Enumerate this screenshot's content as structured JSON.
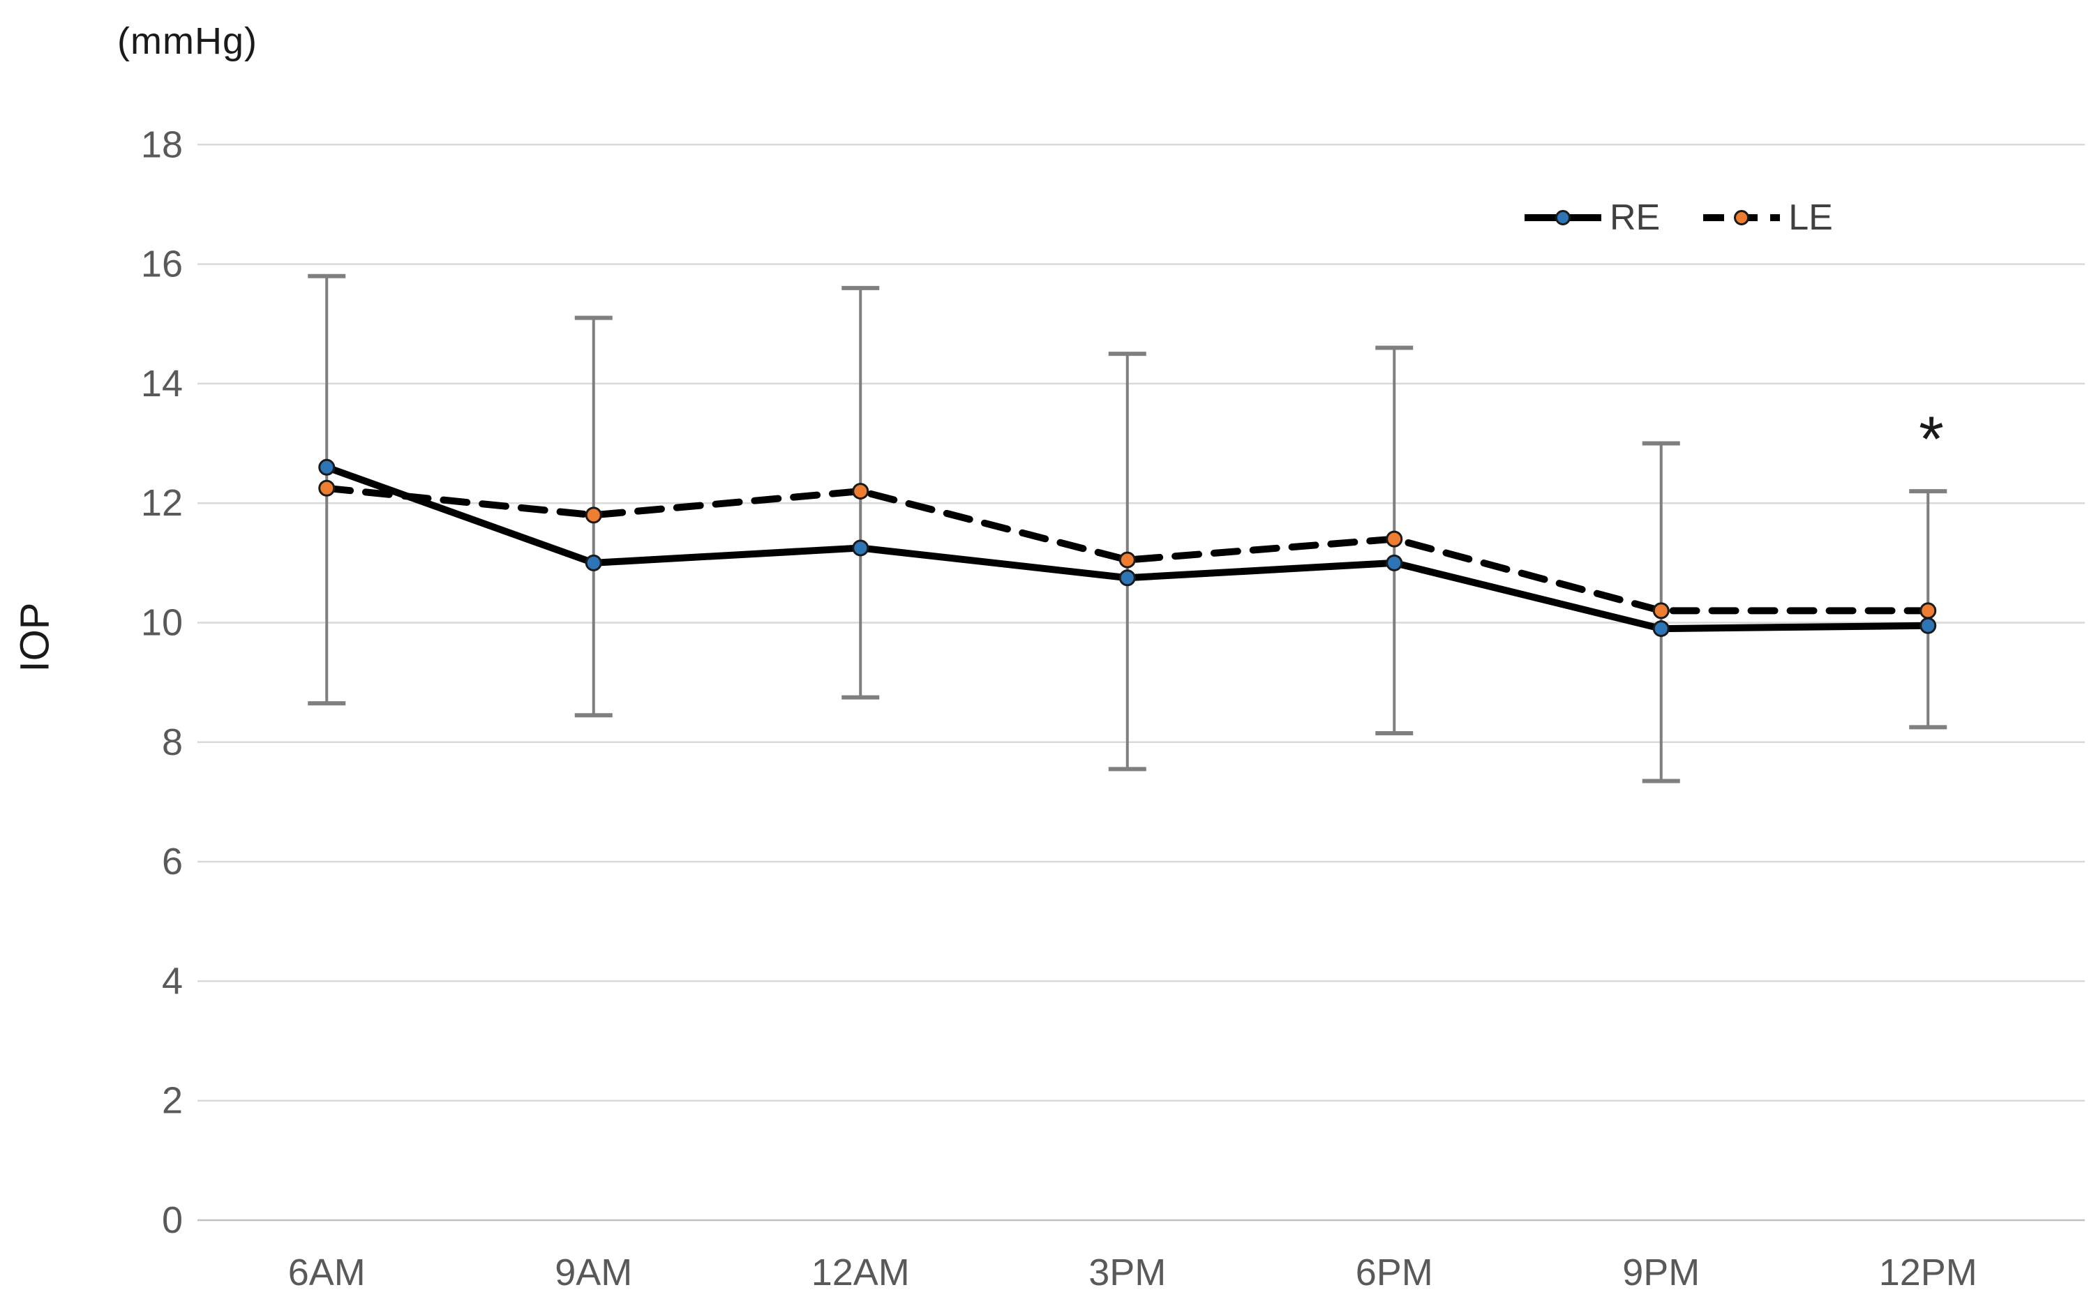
{
  "chart_data": {
    "type": "line",
    "title": "",
    "y_axis_unit_label": "(mmHg)",
    "ylabel": "IOP",
    "xlabel": "",
    "categories": [
      "6AM",
      "9AM",
      "12AM",
      "3PM",
      "6PM",
      "9PM",
      "12PM"
    ],
    "series": [
      {
        "name": "RE",
        "line_style": "solid",
        "line_color": "#000000",
        "marker_color": "#2e75b6",
        "values": [
          12.6,
          11.0,
          11.25,
          10.75,
          11.0,
          9.9,
          9.95
        ]
      },
      {
        "name": "LE",
        "line_style": "dashed",
        "line_color": "#000000",
        "marker_color": "#ed7d31",
        "values": [
          12.25,
          11.8,
          12.2,
          11.05,
          11.4,
          10.2,
          10.2
        ]
      }
    ],
    "error_bars": {
      "color": "#7f7f7f",
      "upper": [
        15.8,
        15.1,
        15.6,
        14.5,
        14.6,
        13.0,
        12.2
      ],
      "lower": [
        8.65,
        8.45,
        8.75,
        7.55,
        8.15,
        7.35,
        8.25
      ]
    },
    "annotation": {
      "text": "*",
      "category": "12PM",
      "y": 13.2
    },
    "ylim": [
      0,
      18
    ],
    "ytick_step": 2,
    "ytick_labels": [
      "0",
      "2",
      "4",
      "6",
      "8",
      "10",
      "12",
      "14",
      "16",
      "18"
    ],
    "grid": "horizontal-only",
    "legend_position": "top-right",
    "colors": {
      "grid": "#d9d9d9",
      "baseline": "#c0c0c0",
      "axis_text": "#595959",
      "background": "#ffffff"
    }
  }
}
